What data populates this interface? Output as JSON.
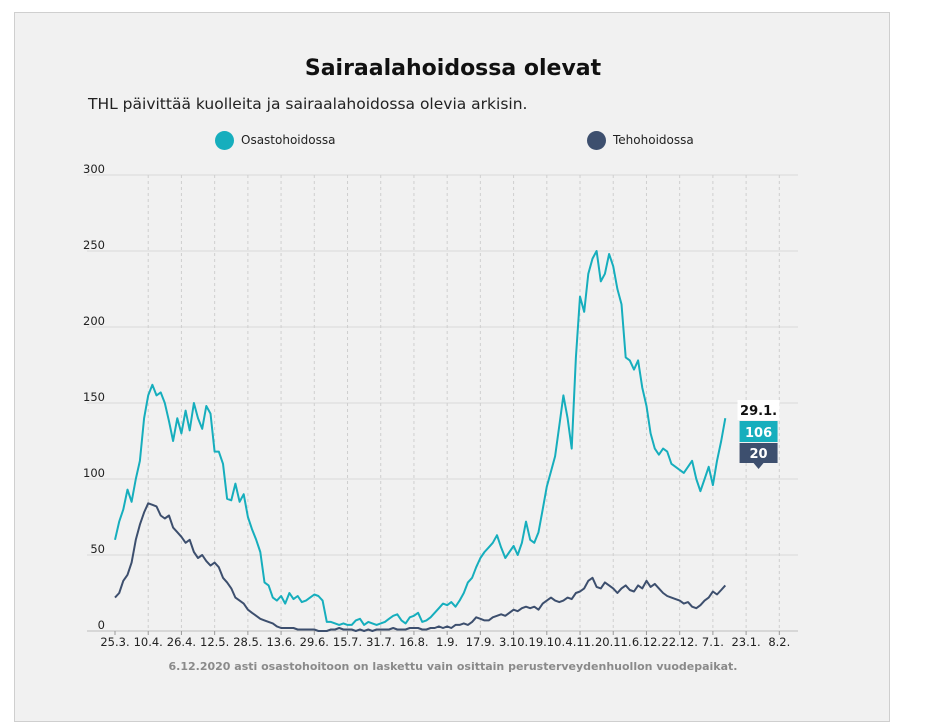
{
  "chart_data": {
    "type": "line",
    "title": "Sairaalahoidossa olevat",
    "subtitle": "THL päivittää kuolleita ja sairaalahoidossa olevia arkisin.",
    "footnote": "6.12.2020 asti osastohoitoon on laskettu vain osittain perusterveydenhuollon vuodepaikat.",
    "ylim": [
      0,
      300
    ],
    "yticks": [
      0,
      50,
      100,
      150,
      200,
      250,
      300
    ],
    "xlabels": [
      "25.3.",
      "10.4.",
      "26.4.",
      "12.5.",
      "28.5.",
      "13.6.",
      "29.6.",
      "15.7.",
      "31.7.",
      "16.8.",
      "1.9.",
      "17.9.",
      "3.10.",
      "19.10.",
      "4.11.",
      "20.11.",
      "6.12.",
      "22.12.",
      "7.1.",
      "23.1.",
      "8.2."
    ],
    "x_start": "25.3.2020",
    "x_end": "17.2.2021",
    "series": [
      {
        "name": "Osastohoidossa",
        "color": "#16aebd",
        "points": [
          [
            0,
            60
          ],
          [
            2,
            72
          ],
          [
            4,
            80
          ],
          [
            6,
            93
          ],
          [
            8,
            85
          ],
          [
            10,
            100
          ],
          [
            12,
            112
          ],
          [
            14,
            140
          ],
          [
            16,
            155
          ],
          [
            18,
            162
          ],
          [
            20,
            155
          ],
          [
            22,
            157
          ],
          [
            24,
            150
          ],
          [
            26,
            138
          ],
          [
            28,
            125
          ],
          [
            30,
            140
          ],
          [
            32,
            130
          ],
          [
            34,
            145
          ],
          [
            36,
            132
          ],
          [
            38,
            150
          ],
          [
            40,
            140
          ],
          [
            42,
            133
          ],
          [
            44,
            148
          ],
          [
            46,
            143
          ],
          [
            48,
            118
          ],
          [
            50,
            118
          ],
          [
            52,
            110
          ],
          [
            54,
            87
          ],
          [
            56,
            86
          ],
          [
            58,
            97
          ],
          [
            60,
            85
          ],
          [
            62,
            90
          ],
          [
            64,
            75
          ],
          [
            66,
            67
          ],
          [
            68,
            60
          ],
          [
            70,
            52
          ],
          [
            72,
            32
          ],
          [
            74,
            30
          ],
          [
            76,
            22
          ],
          [
            78,
            20
          ],
          [
            80,
            23
          ],
          [
            82,
            18
          ],
          [
            84,
            25
          ],
          [
            86,
            21
          ],
          [
            88,
            23
          ],
          [
            90,
            19
          ],
          [
            92,
            20
          ],
          [
            94,
            22
          ],
          [
            96,
            24
          ],
          [
            98,
            23
          ],
          [
            100,
            20
          ],
          [
            102,
            6
          ],
          [
            104,
            6
          ],
          [
            106,
            5
          ],
          [
            108,
            4
          ],
          [
            110,
            5
          ],
          [
            112,
            4
          ],
          [
            114,
            4
          ],
          [
            116,
            7
          ],
          [
            118,
            8
          ],
          [
            120,
            4
          ],
          [
            122,
            6
          ],
          [
            124,
            5
          ],
          [
            126,
            4
          ],
          [
            128,
            5
          ],
          [
            130,
            6
          ],
          [
            132,
            8
          ],
          [
            134,
            10
          ],
          [
            136,
            11
          ],
          [
            138,
            7
          ],
          [
            140,
            5
          ],
          [
            142,
            9
          ],
          [
            144,
            10
          ],
          [
            146,
            12
          ],
          [
            148,
            6
          ],
          [
            150,
            7
          ],
          [
            152,
            9
          ],
          [
            154,
            12
          ],
          [
            156,
            15
          ],
          [
            158,
            18
          ],
          [
            160,
            17
          ],
          [
            162,
            19
          ],
          [
            164,
            16
          ],
          [
            166,
            20
          ],
          [
            168,
            25
          ],
          [
            170,
            32
          ],
          [
            172,
            35
          ],
          [
            174,
            42
          ],
          [
            176,
            48
          ],
          [
            178,
            52
          ],
          [
            180,
            55
          ],
          [
            182,
            58
          ],
          [
            184,
            63
          ],
          [
            186,
            55
          ],
          [
            188,
            48
          ],
          [
            190,
            52
          ],
          [
            192,
            56
          ],
          [
            194,
            50
          ],
          [
            196,
            58
          ],
          [
            198,
            72
          ],
          [
            200,
            60
          ],
          [
            202,
            58
          ],
          [
            204,
            65
          ],
          [
            206,
            80
          ],
          [
            208,
            95
          ],
          [
            210,
            105
          ],
          [
            212,
            115
          ],
          [
            214,
            135
          ],
          [
            216,
            155
          ],
          [
            218,
            140
          ],
          [
            220,
            120
          ],
          [
            222,
            180
          ],
          [
            224,
            220
          ],
          [
            226,
            210
          ],
          [
            228,
            235
          ],
          [
            230,
            245
          ],
          [
            232,
            250
          ],
          [
            234,
            230
          ],
          [
            236,
            235
          ],
          [
            238,
            248
          ],
          [
            240,
            240
          ],
          [
            242,
            225
          ],
          [
            244,
            215
          ],
          [
            246,
            180
          ],
          [
            248,
            178
          ],
          [
            250,
            172
          ],
          [
            252,
            178
          ],
          [
            254,
            160
          ],
          [
            256,
            148
          ],
          [
            258,
            130
          ],
          [
            260,
            120
          ],
          [
            262,
            116
          ],
          [
            264,
            120
          ],
          [
            266,
            118
          ],
          [
            268,
            110
          ],
          [
            270,
            108
          ],
          [
            272,
            106
          ],
          [
            274,
            104
          ],
          [
            276,
            108
          ],
          [
            278,
            112
          ],
          [
            280,
            100
          ],
          [
            282,
            92
          ],
          [
            284,
            100
          ],
          [
            286,
            108
          ],
          [
            288,
            96
          ],
          [
            290,
            112
          ],
          [
            292,
            125
          ],
          [
            294,
            140
          ]
        ]
      },
      {
        "name": "Tehohoidossa",
        "color": "#3d4f6e",
        "points": [
          [
            0,
            22
          ],
          [
            2,
            25
          ],
          [
            4,
            33
          ],
          [
            6,
            37
          ],
          [
            8,
            45
          ],
          [
            10,
            60
          ],
          [
            12,
            70
          ],
          [
            14,
            78
          ],
          [
            16,
            84
          ],
          [
            18,
            83
          ],
          [
            20,
            82
          ],
          [
            22,
            76
          ],
          [
            24,
            74
          ],
          [
            26,
            76
          ],
          [
            28,
            68
          ],
          [
            30,
            65
          ],
          [
            32,
            62
          ],
          [
            34,
            58
          ],
          [
            36,
            60
          ],
          [
            38,
            52
          ],
          [
            40,
            48
          ],
          [
            42,
            50
          ],
          [
            44,
            46
          ],
          [
            46,
            43
          ],
          [
            48,
            45
          ],
          [
            50,
            42
          ],
          [
            52,
            35
          ],
          [
            54,
            32
          ],
          [
            56,
            28
          ],
          [
            58,
            22
          ],
          [
            60,
            20
          ],
          [
            62,
            18
          ],
          [
            64,
            14
          ],
          [
            66,
            12
          ],
          [
            68,
            10
          ],
          [
            70,
            8
          ],
          [
            72,
            7
          ],
          [
            74,
            6
          ],
          [
            76,
            5
          ],
          [
            78,
            3
          ],
          [
            80,
            2
          ],
          [
            82,
            2
          ],
          [
            84,
            2
          ],
          [
            86,
            2
          ],
          [
            88,
            1
          ],
          [
            90,
            1
          ],
          [
            92,
            1
          ],
          [
            94,
            1
          ],
          [
            96,
            1
          ],
          [
            98,
            0
          ],
          [
            100,
            0
          ],
          [
            102,
            0
          ],
          [
            104,
            1
          ],
          [
            106,
            1
          ],
          [
            108,
            2
          ],
          [
            110,
            1
          ],
          [
            112,
            1
          ],
          [
            114,
            1
          ],
          [
            116,
            0
          ],
          [
            118,
            1
          ],
          [
            120,
            0
          ],
          [
            122,
            1
          ],
          [
            124,
            0
          ],
          [
            126,
            1
          ],
          [
            128,
            1
          ],
          [
            130,
            1
          ],
          [
            132,
            1
          ],
          [
            134,
            2
          ],
          [
            136,
            1
          ],
          [
            138,
            1
          ],
          [
            140,
            1
          ],
          [
            142,
            2
          ],
          [
            144,
            2
          ],
          [
            146,
            2
          ],
          [
            148,
            1
          ],
          [
            150,
            1
          ],
          [
            152,
            2
          ],
          [
            154,
            2
          ],
          [
            156,
            3
          ],
          [
            158,
            2
          ],
          [
            160,
            3
          ],
          [
            162,
            2
          ],
          [
            164,
            4
          ],
          [
            166,
            4
          ],
          [
            168,
            5
          ],
          [
            170,
            4
          ],
          [
            172,
            6
          ],
          [
            174,
            9
          ],
          [
            176,
            8
          ],
          [
            178,
            7
          ],
          [
            180,
            7
          ],
          [
            182,
            9
          ],
          [
            184,
            10
          ],
          [
            186,
            11
          ],
          [
            188,
            10
          ],
          [
            190,
            12
          ],
          [
            192,
            14
          ],
          [
            194,
            13
          ],
          [
            196,
            15
          ],
          [
            198,
            16
          ],
          [
            200,
            15
          ],
          [
            202,
            16
          ],
          [
            204,
            14
          ],
          [
            206,
            18
          ],
          [
            208,
            20
          ],
          [
            210,
            22
          ],
          [
            212,
            20
          ],
          [
            214,
            19
          ],
          [
            216,
            20
          ],
          [
            218,
            22
          ],
          [
            220,
            21
          ],
          [
            222,
            25
          ],
          [
            224,
            26
          ],
          [
            226,
            28
          ],
          [
            228,
            33
          ],
          [
            230,
            35
          ],
          [
            232,
            29
          ],
          [
            234,
            28
          ],
          [
            236,
            32
          ],
          [
            238,
            30
          ],
          [
            240,
            28
          ],
          [
            242,
            25
          ],
          [
            244,
            28
          ],
          [
            246,
            30
          ],
          [
            248,
            27
          ],
          [
            250,
            26
          ],
          [
            252,
            30
          ],
          [
            254,
            28
          ],
          [
            256,
            33
          ],
          [
            258,
            29
          ],
          [
            260,
            31
          ],
          [
            262,
            28
          ],
          [
            264,
            25
          ],
          [
            266,
            23
          ],
          [
            268,
            22
          ],
          [
            270,
            21
          ],
          [
            272,
            20
          ],
          [
            274,
            18
          ],
          [
            276,
            19
          ],
          [
            278,
            16
          ],
          [
            280,
            15
          ],
          [
            282,
            17
          ],
          [
            284,
            20
          ],
          [
            286,
            22
          ],
          [
            288,
            26
          ],
          [
            290,
            24
          ],
          [
            292,
            27
          ],
          [
            294,
            30
          ]
        ]
      }
    ],
    "tooltip": {
      "date": "29.1.",
      "Osastohoidossa": "106",
      "Tehohoidossa": "20"
    }
  }
}
